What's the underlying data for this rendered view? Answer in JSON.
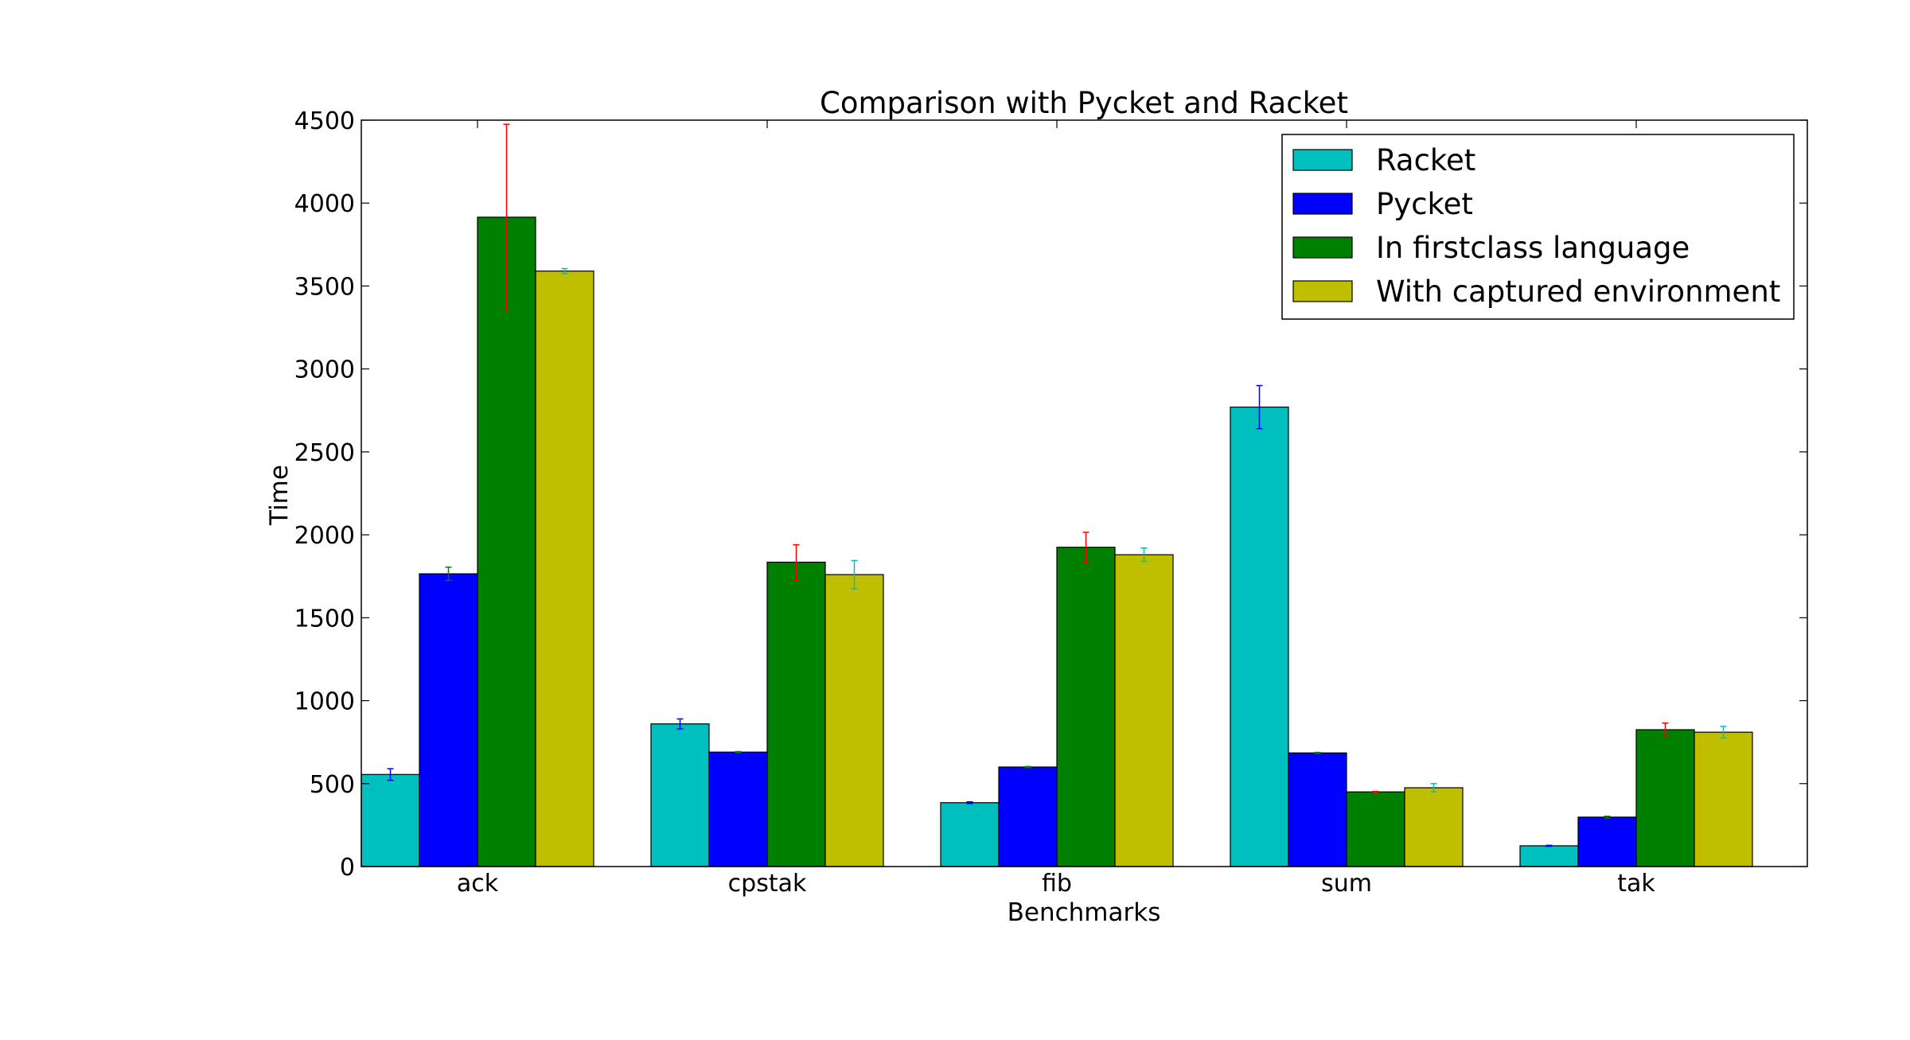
{
  "chart_data": {
    "type": "bar",
    "title": "Comparison with Pycket and Racket",
    "xlabel": "Benchmarks",
    "ylabel": "Time",
    "categories": [
      "ack",
      "cpstak",
      "fib",
      "sum",
      "tak"
    ],
    "ylim": [
      0,
      4500
    ],
    "yticks": [
      "0",
      "500",
      "1000",
      "1500",
      "2000",
      "2500",
      "3000",
      "3500",
      "4000",
      "4500"
    ],
    "grid": false,
    "legend_position": "top-right",
    "series": [
      {
        "name": "Racket",
        "color": "#00bfbf",
        "error_color": "#0000ff",
        "values": [
          555,
          860,
          385,
          2770,
          125
        ],
        "errors": [
          35,
          30,
          5,
          130,
          3
        ]
      },
      {
        "name": "Pycket",
        "color": "#0000ff",
        "error_color": "#008000",
        "values": [
          1765,
          690,
          600,
          685,
          298
        ],
        "errors": [
          40,
          3,
          3,
          3,
          5
        ]
      },
      {
        "name": "In firstclass language",
        "color": "#008000",
        "error_color": "#ff0000",
        "values": [
          3915,
          1835,
          1925,
          450,
          825
        ],
        "errors": [
          560,
          105,
          90,
          3,
          40
        ]
      },
      {
        "name": "With captured environment",
        "color": "#bfbf00",
        "error_color": "#00bfbf",
        "values": [
          3590,
          1760,
          1880,
          475,
          810
        ],
        "errors": [
          15,
          85,
          40,
          25,
          35
        ]
      }
    ]
  }
}
